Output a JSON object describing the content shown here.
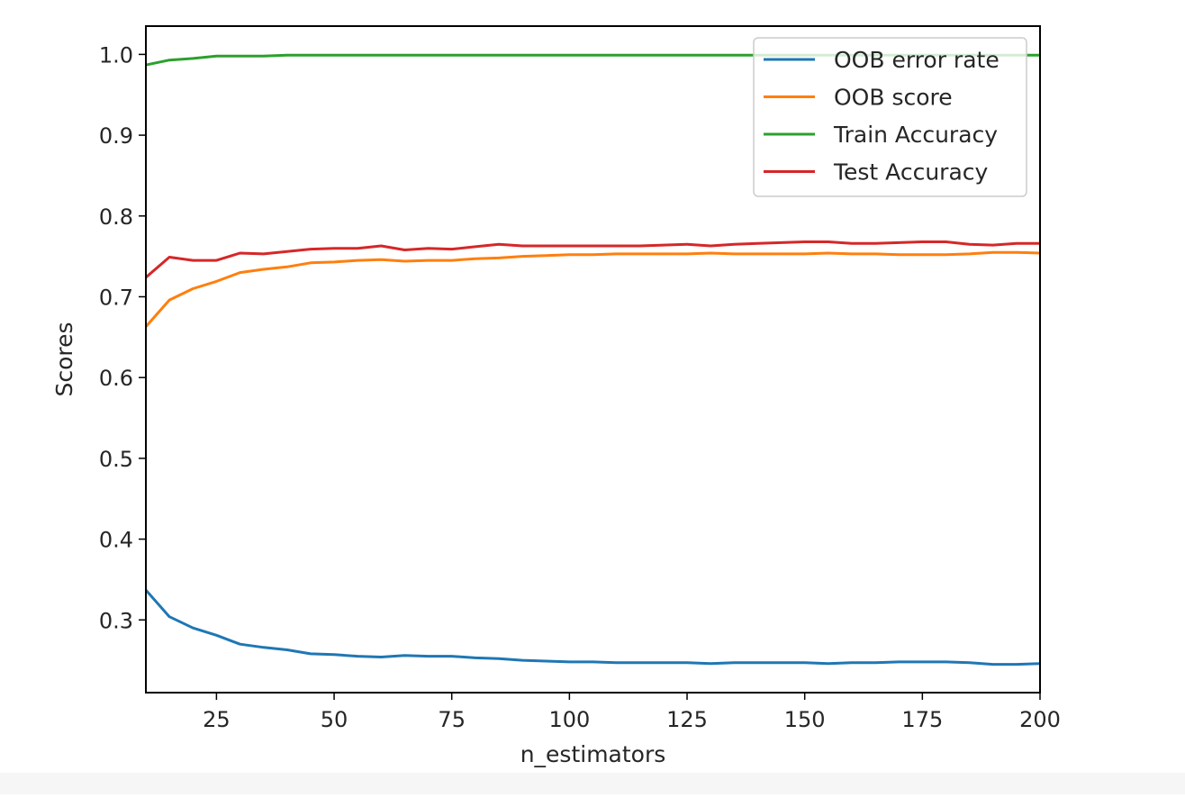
{
  "chart_data": {
    "type": "line",
    "title": "",
    "xlabel": "n_estimators",
    "ylabel": "Scores",
    "xlim": [
      10,
      200
    ],
    "ylim": [
      0.21,
      1.035
    ],
    "x_ticks": [
      25,
      50,
      75,
      100,
      125,
      150,
      175,
      200
    ],
    "x_tick_labels": [
      "25",
      "50",
      "75",
      "100",
      "125",
      "150",
      "175",
      "200"
    ],
    "y_ticks": [
      0.3,
      0.4,
      0.5,
      0.6,
      0.7,
      0.8,
      0.9,
      1.0
    ],
    "y_tick_labels": [
      "0.3",
      "0.4",
      "0.5",
      "0.6",
      "0.7",
      "0.8",
      "0.9",
      "1.0"
    ],
    "grid": false,
    "legend_position": "upper right",
    "x": [
      10,
      15,
      20,
      25,
      30,
      35,
      40,
      45,
      50,
      55,
      60,
      65,
      70,
      75,
      80,
      85,
      90,
      95,
      100,
      105,
      110,
      115,
      120,
      125,
      130,
      135,
      140,
      145,
      150,
      155,
      160,
      165,
      170,
      175,
      180,
      185,
      190,
      195,
      200
    ],
    "series": [
      {
        "name": "OOB error rate",
        "color": "#1f77b4",
        "values": [
          0.337,
          0.304,
          0.29,
          0.281,
          0.27,
          0.266,
          0.263,
          0.258,
          0.257,
          0.255,
          0.254,
          0.256,
          0.255,
          0.255,
          0.253,
          0.252,
          0.25,
          0.249,
          0.248,
          0.248,
          0.247,
          0.247,
          0.247,
          0.247,
          0.246,
          0.247,
          0.247,
          0.247,
          0.247,
          0.246,
          0.247,
          0.247,
          0.248,
          0.248,
          0.248,
          0.247,
          0.245,
          0.245,
          0.246
        ]
      },
      {
        "name": "OOB score",
        "color": "#ff7f0e",
        "values": [
          0.663,
          0.696,
          0.71,
          0.719,
          0.73,
          0.734,
          0.737,
          0.742,
          0.743,
          0.745,
          0.746,
          0.744,
          0.745,
          0.745,
          0.747,
          0.748,
          0.75,
          0.751,
          0.752,
          0.752,
          0.753,
          0.753,
          0.753,
          0.753,
          0.754,
          0.753,
          0.753,
          0.753,
          0.753,
          0.754,
          0.753,
          0.753,
          0.752,
          0.752,
          0.752,
          0.753,
          0.755,
          0.755,
          0.754
        ]
      },
      {
        "name": "Train Accuracy",
        "color": "#2ca02c",
        "values": [
          0.987,
          0.993,
          0.995,
          0.998,
          0.998,
          0.998,
          0.999,
          0.999,
          0.999,
          0.999,
          0.999,
          0.999,
          0.999,
          0.999,
          0.999,
          0.999,
          0.999,
          0.999,
          0.999,
          0.999,
          0.999,
          0.999,
          0.999,
          0.999,
          0.999,
          0.999,
          0.999,
          0.999,
          0.999,
          0.999,
          0.999,
          0.999,
          0.999,
          0.999,
          0.999,
          0.999,
          0.999,
          0.999,
          0.999
        ]
      },
      {
        "name": "Test Accuracy",
        "color": "#d62728",
        "values": [
          0.724,
          0.749,
          0.745,
          0.745,
          0.754,
          0.753,
          0.756,
          0.759,
          0.76,
          0.76,
          0.763,
          0.758,
          0.76,
          0.759,
          0.762,
          0.765,
          0.763,
          0.763,
          0.763,
          0.763,
          0.763,
          0.763,
          0.764,
          0.765,
          0.763,
          0.765,
          0.766,
          0.767,
          0.768,
          0.768,
          0.766,
          0.766,
          0.767,
          0.768,
          0.768,
          0.765,
          0.764,
          0.766,
          0.766
        ]
      }
    ]
  }
}
